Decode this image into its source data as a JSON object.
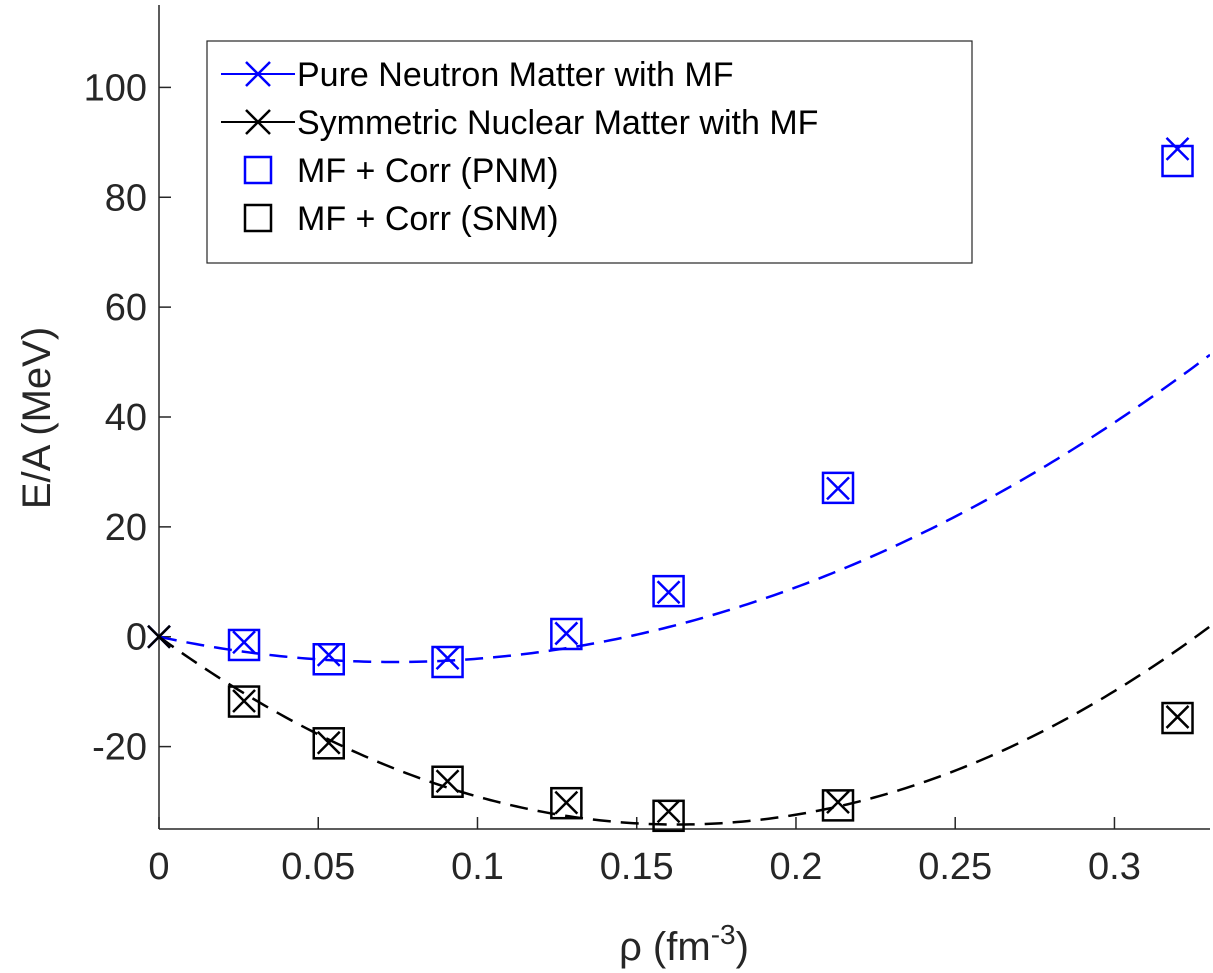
{
  "chart_data": {
    "type": "line",
    "xlabel": "ρ (fm",
    "xlabel_sup": "-3",
    "xlabel_suffix": ")",
    "ylabel": "E/A (MeV)",
    "xlim": [
      0,
      0.33
    ],
    "ylim": [
      -35,
      115
    ],
    "xticks": [
      0,
      0.05,
      0.1,
      0.15,
      0.2,
      0.25,
      0.3
    ],
    "xtick_labels": [
      "0",
      "0.05",
      "0.1",
      "0.15",
      "0.2",
      "0.25",
      "0.3"
    ],
    "yticks": [
      -20,
      0,
      20,
      40,
      60,
      80,
      100
    ],
    "ytick_labels": [
      "-20",
      "0",
      "20",
      "40",
      "60",
      "80",
      "100"
    ],
    "legend_position": "top-left",
    "series": [
      {
        "name": "Pure Neutron Matter with MF",
        "color": "#0000ff",
        "marker": "x",
        "line": "dashed",
        "x": [
          0,
          0.0267,
          0.0533,
          0.0906,
          0.1279,
          0.16,
          0.2132,
          0.3198
        ],
        "y": [
          0,
          -1.0,
          -3.3,
          -3.9,
          0.6,
          8.1,
          27.0,
          88.8
        ]
      },
      {
        "name": "Symmetric Nuclear Matter with MF",
        "color": "#000000",
        "marker": "x",
        "line": "dashed",
        "x": [
          0,
          0.0267,
          0.0533,
          0.0906,
          0.1279,
          0.16,
          0.2132,
          0.3198
        ],
        "y": [
          0,
          -11.7,
          -19.3,
          -26.3,
          -30.2,
          -31.8,
          -30.1,
          -14.6
        ]
      },
      {
        "name": "MF + Corr (PNM)",
        "color": "#0000ff",
        "marker": "square",
        "line": "none",
        "x": [
          0.0267,
          0.0533,
          0.0906,
          0.1279,
          0.16,
          0.2132,
          0.3198
        ],
        "y": [
          -1.5,
          -4.1,
          -4.6,
          0.5,
          8.3,
          27.1,
          86.6
        ]
      },
      {
        "name": "MF + Corr (SNM)",
        "color": "#000000",
        "marker": "square",
        "line": "none",
        "x": [
          0.0267,
          0.0533,
          0.0906,
          0.1279,
          0.16,
          0.2132,
          0.3198
        ],
        "y": [
          -11.8,
          -19.4,
          -26.4,
          -30.3,
          -32.6,
          -30.7,
          -14.8
        ]
      }
    ],
    "fit_curves": [
      {
        "series_index": 0,
        "color": "#0000ff",
        "coeffs": [
          0,
          -125,
          850
        ]
      },
      {
        "series_index": 1,
        "color": "#000000",
        "coeffs": [
          0,
          -420,
          1290
        ]
      }
    ]
  }
}
